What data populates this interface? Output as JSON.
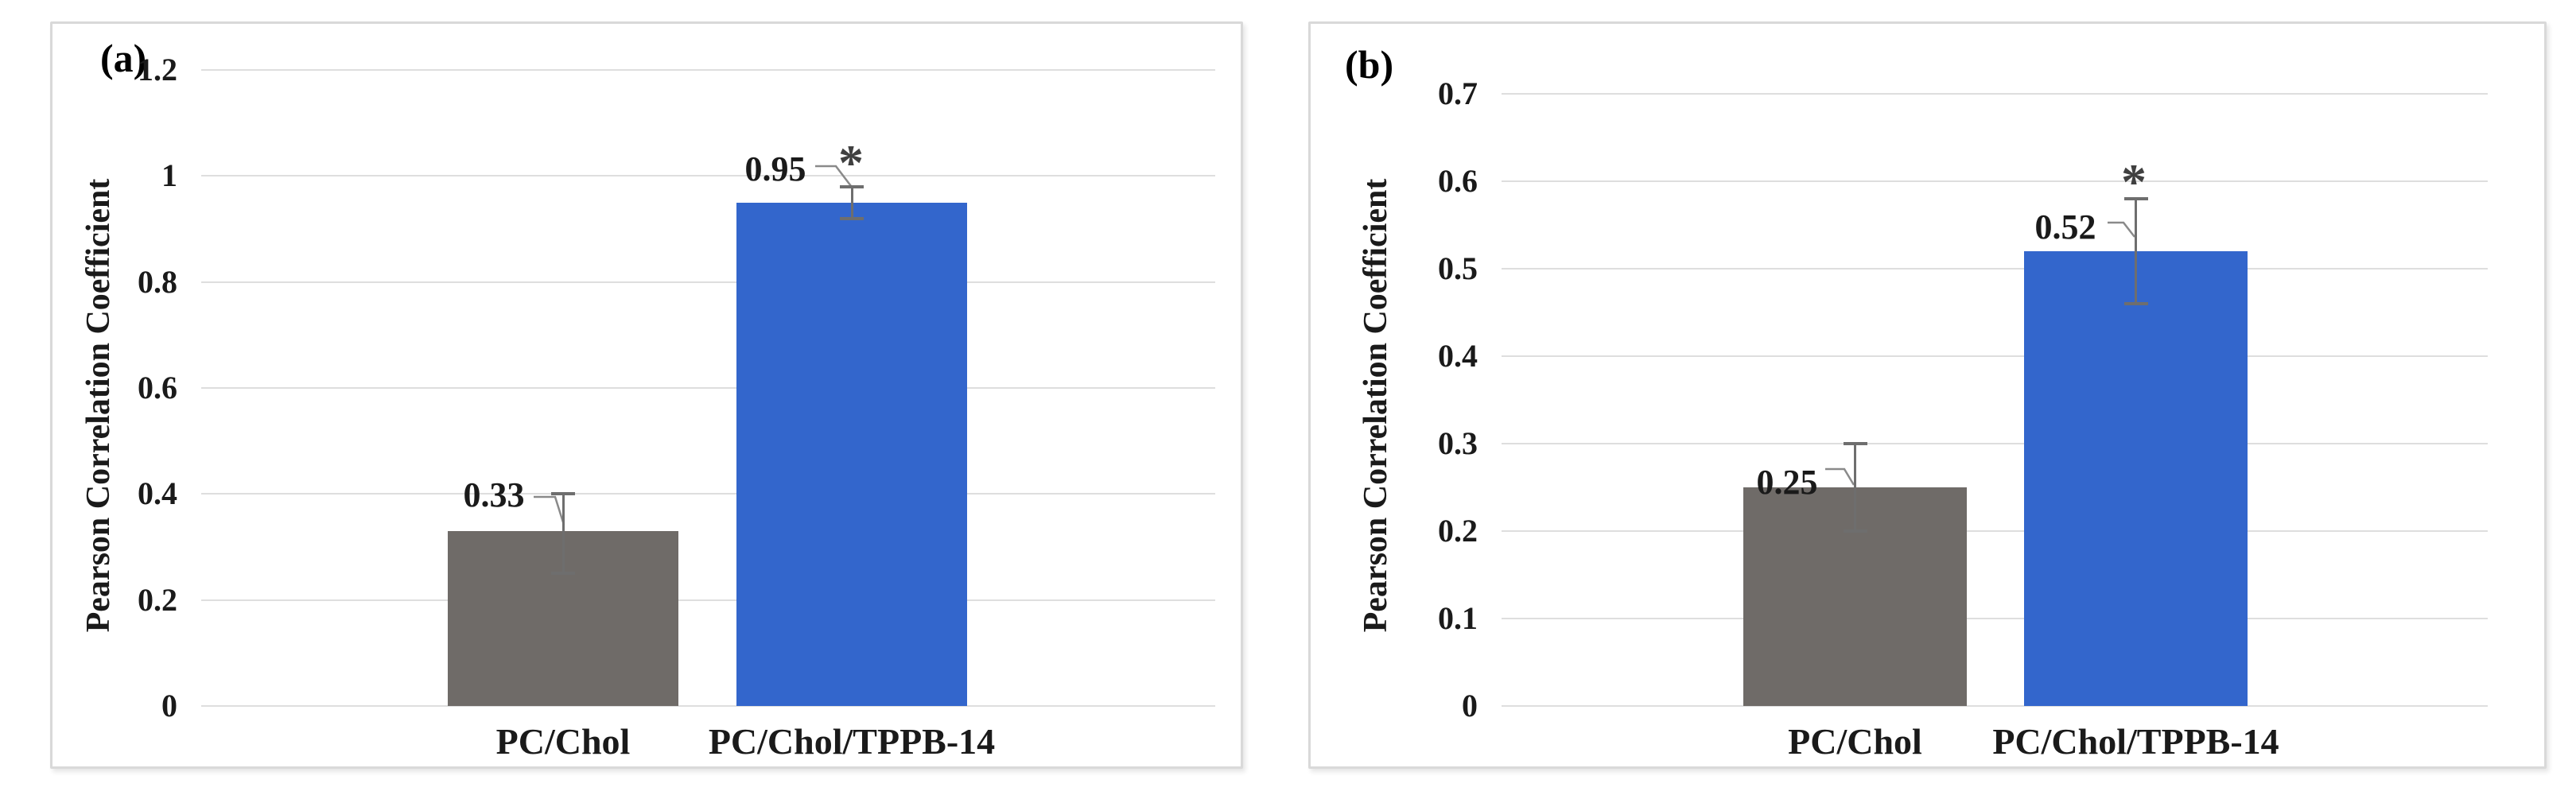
{
  "figure": {
    "description_labels": [
      "(a)",
      "(b)"
    ]
  },
  "colors": {
    "bar_gray": "#6f6b68",
    "bar_blue": "#3366cc",
    "gridline": "#dedede",
    "error_bar": "#6e6e6e",
    "leader_line": "#8a8a8a",
    "significance_marker": "#404040",
    "text": "#1a1a1a",
    "panel_border": "#d9d9d9"
  },
  "chart_data": [
    {
      "type": "bar",
      "panel_label": "(a)",
      "title": "",
      "xlabel": "",
      "ylabel": "Pearson Correlation Coefficient",
      "ylim": [
        0,
        1.2
      ],
      "ytick_step": 0.2,
      "ytick_labels": [
        "0",
        "0.2",
        "0.4",
        "0.6",
        "0.8",
        "1",
        "1.2"
      ],
      "grid": true,
      "legend_position": "none",
      "categories": [
        "PC/Chol",
        "PC/Chol/TPPB-14"
      ],
      "values": [
        0.33,
        0.95
      ],
      "value_labels": [
        "0.33",
        "0.95"
      ],
      "bar_colors": [
        "#6f6b68",
        "#3366cc"
      ],
      "error_low": [
        0.25,
        0.92
      ],
      "error_high": [
        0.4,
        0.98
      ],
      "significance": [
        "",
        "*"
      ]
    },
    {
      "type": "bar",
      "panel_label": "(b)",
      "title": "",
      "xlabel": "",
      "ylabel": "Pearson Correlation Coefficient",
      "ylim": [
        0,
        0.7
      ],
      "ytick_step": 0.1,
      "ytick_labels": [
        "0",
        "0.1",
        "0.2",
        "0.3",
        "0.4",
        "0.5",
        "0.6",
        "0.7"
      ],
      "grid": true,
      "legend_position": "none",
      "categories": [
        "PC/Chol",
        "PC/Chol/TPPB-14"
      ],
      "values": [
        0.25,
        0.52
      ],
      "value_labels": [
        "0.25",
        "0.52"
      ],
      "bar_colors": [
        "#6f6b68",
        "#3366cc"
      ],
      "error_low": [
        0.2,
        0.46
      ],
      "error_high": [
        0.3,
        0.58
      ],
      "significance": [
        "",
        "*"
      ]
    }
  ]
}
